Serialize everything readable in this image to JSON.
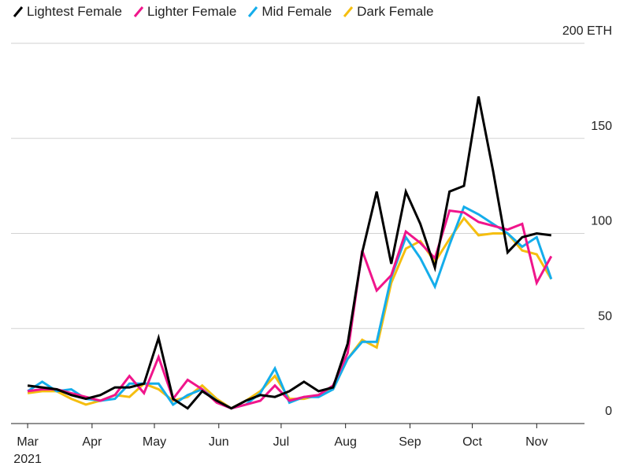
{
  "chart_data": {
    "type": "line",
    "title": "",
    "xlabel": "",
    "ylabel": "",
    "y_unit": "ETH",
    "ylim": [
      0,
      200
    ],
    "y_ticks": [
      {
        "value": 0,
        "label": "0"
      },
      {
        "value": 50,
        "label": "50"
      },
      {
        "value": 100,
        "label": "100"
      },
      {
        "value": 150,
        "label": "150"
      },
      {
        "value": 200,
        "label": "200 ETH"
      }
    ],
    "x_ticks": [
      {
        "date": "2021-03-01",
        "label": "Mar",
        "sublabel": "2021"
      },
      {
        "date": "2021-04-01",
        "label": "Apr"
      },
      {
        "date": "2021-05-01",
        "label": "May"
      },
      {
        "date": "2021-06-01",
        "label": "Jun"
      },
      {
        "date": "2021-07-01",
        "label": "Jul"
      },
      {
        "date": "2021-08-01",
        "label": "Aug"
      },
      {
        "date": "2021-09-01",
        "label": "Sep"
      },
      {
        "date": "2021-10-01",
        "label": "Oct"
      },
      {
        "date": "2021-11-01",
        "label": "Nov"
      }
    ],
    "grid": true,
    "legend": "top-left",
    "x": [
      "2021-03-01",
      "2021-03-08",
      "2021-03-15",
      "2021-03-22",
      "2021-03-29",
      "2021-04-05",
      "2021-04-12",
      "2021-04-19",
      "2021-04-26",
      "2021-05-03",
      "2021-05-10",
      "2021-05-17",
      "2021-05-24",
      "2021-05-31",
      "2021-06-07",
      "2021-06-14",
      "2021-06-21",
      "2021-06-28",
      "2021-07-05",
      "2021-07-12",
      "2021-07-19",
      "2021-07-26",
      "2021-08-02",
      "2021-08-09",
      "2021-08-16",
      "2021-08-23",
      "2021-08-30",
      "2021-09-06",
      "2021-09-13",
      "2021-09-20",
      "2021-09-27",
      "2021-10-04",
      "2021-10-11",
      "2021-10-18",
      "2021-10-25",
      "2021-11-01",
      "2021-11-08"
    ],
    "series": [
      {
        "name": "Lightest Female",
        "color": "#000000",
        "values": [
          20,
          19,
          18,
          15,
          13,
          15,
          19,
          19,
          21,
          45,
          13,
          8,
          17,
          12,
          8,
          12,
          15,
          14,
          17,
          22,
          17,
          19,
          42,
          90,
          122,
          84,
          122,
          105,
          82,
          122,
          125,
          172,
          133,
          90,
          98,
          100,
          99
        ]
      },
      {
        "name": "Lighter Female",
        "color": "#f0158b",
        "values": [
          17,
          18,
          18,
          16,
          14,
          12,
          15,
          25,
          16,
          35,
          13,
          23,
          18,
          11,
          8,
          10,
          12,
          20,
          12,
          14,
          15,
          20,
          37,
          91,
          70,
          78,
          101,
          95,
          87,
          112,
          111,
          106,
          104,
          102,
          105,
          74,
          88
        ]
      },
      {
        "name": "Mid Female",
        "color": "#14adeb",
        "values": [
          17,
          22,
          17,
          18,
          13,
          12,
          13,
          21,
          21,
          21,
          10,
          15,
          18,
          12,
          8,
          10,
          16,
          29,
          11,
          14,
          14,
          18,
          34,
          43,
          43,
          77,
          98,
          87,
          72,
          94,
          114,
          110,
          105,
          100,
          93,
          98,
          76
        ]
      },
      {
        "name": "Dark Female",
        "color": "#f5be0f",
        "values": [
          16,
          17,
          17,
          13,
          10,
          12,
          15,
          14,
          21,
          18,
          12,
          14,
          20,
          13,
          8,
          12,
          17,
          25,
          13,
          13,
          15,
          18,
          34,
          44,
          40,
          74,
          92,
          96,
          85,
          97,
          108,
          99,
          100,
          100,
          91,
          89,
          76
        ]
      }
    ]
  }
}
